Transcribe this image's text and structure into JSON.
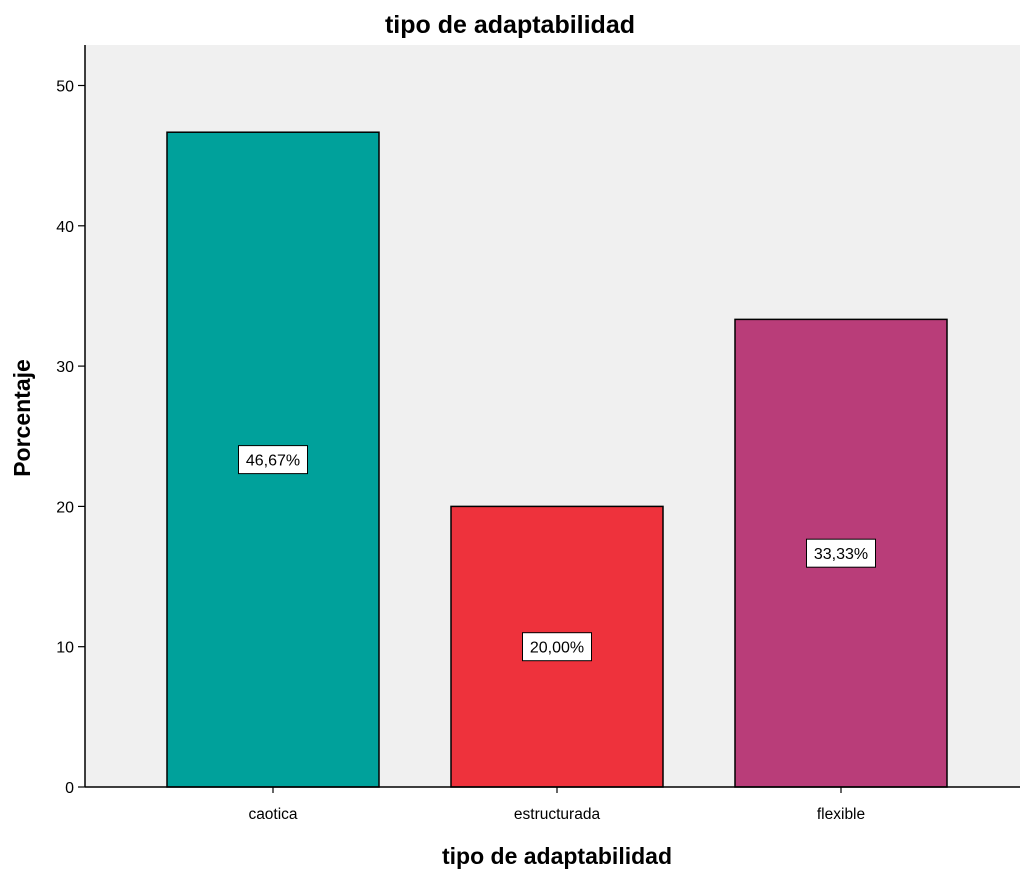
{
  "chart_data": {
    "type": "bar",
    "title": "tipo de adaptabilidad",
    "xlabel": "tipo de adaptabilidad",
    "ylabel": "Porcentaje",
    "categories": [
      "caotica",
      "estructurada",
      "flexible"
    ],
    "values": [
      46.67,
      20.0,
      33.33
    ],
    "data_labels": [
      "46,67%",
      "20,00%",
      "33,33%"
    ],
    "colors": [
      "#00a19b",
      "#ee323c",
      "#b93d79"
    ],
    "yticks": [
      "0",
      "10",
      "20",
      "30",
      "40",
      "50"
    ],
    "ylim": [
      0,
      52
    ],
    "grid": false,
    "legend": "none",
    "plot_background": "#f0f0f0"
  }
}
